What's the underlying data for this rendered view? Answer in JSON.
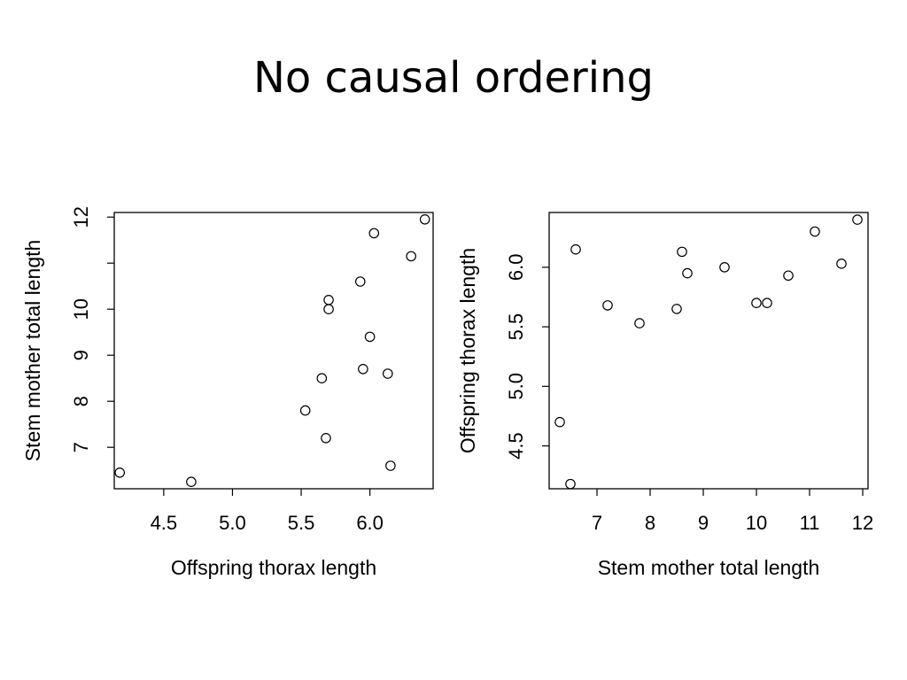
{
  "slide": {
    "title": "No causal ordering"
  },
  "chart_data": [
    {
      "type": "scatter",
      "title": "",
      "xlabel": "Offspring thorax length",
      "ylabel": "Stem mother total length",
      "xlim": [
        4.14,
        6.46
      ],
      "ylim": [
        6.1,
        12.1
      ],
      "xticks": [
        "4.5",
        "5.0",
        "5.5",
        "6.0"
      ],
      "yticks": [
        "7",
        "8",
        "9",
        "10",
        "11",
        "12"
      ],
      "x": [
        4.18,
        4.7,
        5.53,
        5.65,
        5.68,
        5.7,
        5.7,
        5.93,
        5.95,
        6.0,
        6.03,
        6.13,
        6.15,
        6.3,
        6.4
      ],
      "y": [
        6.45,
        6.25,
        7.8,
        8.5,
        7.2,
        10.0,
        10.2,
        10.6,
        8.7,
        9.4,
        11.65,
        8.6,
        6.6,
        11.15,
        11.95
      ],
      "marker": "open-circle",
      "grid": false
    },
    {
      "type": "scatter",
      "title": "",
      "xlabel": "Stem mother total length",
      "ylabel": "Offspring thorax length",
      "xlim": [
        6.1,
        12.1
      ],
      "ylim": [
        4.14,
        6.46
      ],
      "xticks": [
        "7",
        "8",
        "9",
        "10",
        "11",
        "12"
      ],
      "yticks": [
        "4.5",
        "5.0",
        "5.5",
        "6.0"
      ],
      "x": [
        6.3,
        6.5,
        6.6,
        7.2,
        7.8,
        8.5,
        8.6,
        8.7,
        9.4,
        10.0,
        10.2,
        10.6,
        11.1,
        11.6,
        11.9
      ],
      "y": [
        4.7,
        4.18,
        6.15,
        5.68,
        5.53,
        5.65,
        6.13,
        5.95,
        6.0,
        5.7,
        5.7,
        5.93,
        6.3,
        6.03,
        6.4
      ],
      "marker": "open-circle",
      "grid": false
    }
  ]
}
